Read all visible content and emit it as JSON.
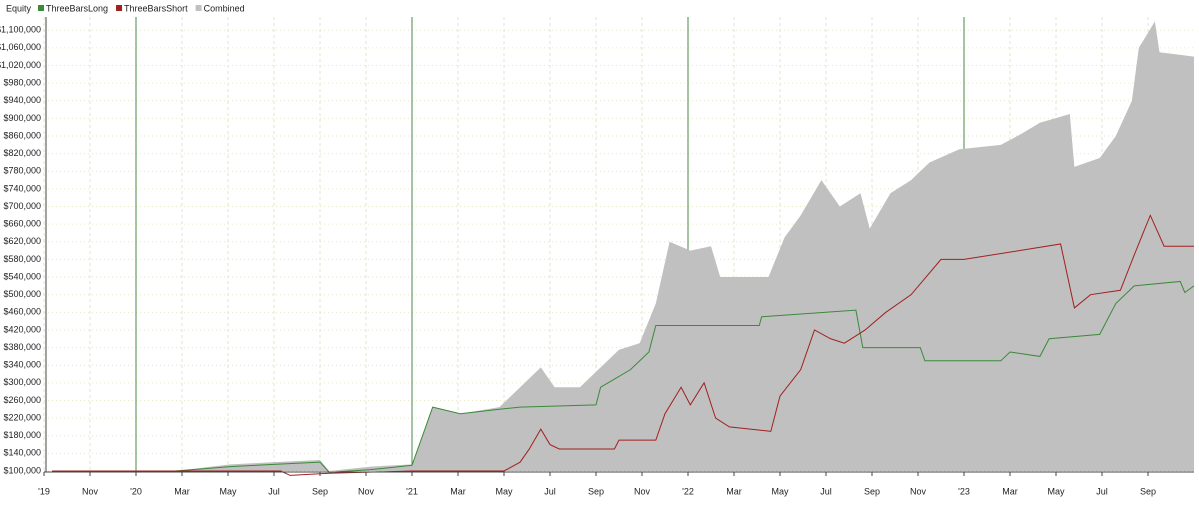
{
  "chart_data": {
    "type": "equity",
    "title": "Equity",
    "xlim": [
      0,
      50
    ],
    "ylim": [
      100000,
      1130000
    ],
    "grid": true,
    "xticks": [
      {
        "value": 0,
        "label": "'19"
      },
      {
        "value": 2,
        "label": "Nov"
      },
      {
        "value": 4,
        "label": "'20"
      },
      {
        "value": 6,
        "label": "Mar"
      },
      {
        "value": 8,
        "label": "May"
      },
      {
        "value": 10,
        "label": "Jul"
      },
      {
        "value": 12,
        "label": "Sep"
      },
      {
        "value": 14,
        "label": "Nov"
      },
      {
        "value": 16,
        "label": "'21"
      },
      {
        "value": 18,
        "label": "Mar"
      },
      {
        "value": 20,
        "label": "May"
      },
      {
        "value": 22,
        "label": "Jul"
      },
      {
        "value": 24,
        "label": "Sep"
      },
      {
        "value": 26,
        "label": "Nov"
      },
      {
        "value": 28,
        "label": "'22"
      },
      {
        "value": 30,
        "label": "Mar"
      },
      {
        "value": 32,
        "label": "May"
      },
      {
        "value": 34,
        "label": "Jul"
      },
      {
        "value": 36,
        "label": "Sep"
      },
      {
        "value": 38,
        "label": "Nov"
      },
      {
        "value": 40,
        "label": "'23"
      },
      {
        "value": 42,
        "label": "Mar"
      },
      {
        "value": 44,
        "label": "May"
      },
      {
        "value": 46,
        "label": "Jul"
      },
      {
        "value": 48,
        "label": "Sep"
      }
    ],
    "yticks": [
      {
        "value": 100000,
        "label": "$100,000"
      },
      {
        "value": 140000,
        "label": "$140,000"
      },
      {
        "value": 180000,
        "label": "$180,000"
      },
      {
        "value": 220000,
        "label": "$220,000"
      },
      {
        "value": 260000,
        "label": "$260,000"
      },
      {
        "value": 300000,
        "label": "$300,000"
      },
      {
        "value": 340000,
        "label": "$340,000"
      },
      {
        "value": 380000,
        "label": "$380,000"
      },
      {
        "value": 420000,
        "label": "$420,000"
      },
      {
        "value": 460000,
        "label": "$460,000"
      },
      {
        "value": 500000,
        "label": "$500,000"
      },
      {
        "value": 540000,
        "label": "$540,000"
      },
      {
        "value": 580000,
        "label": "$580,000"
      },
      {
        "value": 620000,
        "label": "$620,000"
      },
      {
        "value": 660000,
        "label": "$660,000"
      },
      {
        "value": 700000,
        "label": "$700,000"
      },
      {
        "value": 740000,
        "label": "$740,000"
      },
      {
        "value": 780000,
        "label": "$780,000"
      },
      {
        "value": 820000,
        "label": "$820,000"
      },
      {
        "value": 860000,
        "label": "$860,000"
      },
      {
        "value": 900000,
        "label": "$900,000"
      },
      {
        "value": 940000,
        "label": "$940,000"
      },
      {
        "value": 980000,
        "label": "$980,000"
      },
      {
        "value": 1020000,
        "label": "$1,020,000"
      },
      {
        "value": 1060000,
        "label": "$1,060,000"
      },
      {
        "value": 1100000,
        "label": "$1,100,000"
      }
    ],
    "series": [
      {
        "name": "ThreeBarsLong",
        "color": "#3a8a3a",
        "kind": "line",
        "x": [
          0.35,
          5.7,
          8.1,
          10,
          12,
          12.4,
          14.2,
          16,
          16.9,
          18.1,
          19.8,
          20.7,
          24,
          24.2,
          25.5,
          26.3,
          26.6,
          31.1,
          31.2,
          35.3,
          35.6,
          38.1,
          38.3,
          41.6,
          42,
          43.3,
          43.7,
          45.9,
          46.6,
          47.4,
          49.4,
          49.6,
          50
        ],
        "values": [
          100000,
          100000,
          110000,
          115000,
          120000,
          97000,
          103000,
          113000,
          245000,
          230000,
          240000,
          245000,
          250000,
          290000,
          330000,
          370000,
          430000,
          430000,
          450000,
          465000,
          380000,
          380000,
          350000,
          350000,
          370000,
          360000,
          400000,
          410000,
          480000,
          520000,
          530000,
          505000,
          520000
        ]
      },
      {
        "name": "ThreeBarsShort",
        "color": "#a02020",
        "kind": "line",
        "x": [
          0.35,
          10.3,
          10.7,
          12.4,
          16,
          20,
          20.7,
          21.1,
          21.6,
          22,
          22.4,
          24.8,
          25,
          26.6,
          27,
          27.7,
          28.1,
          28.7,
          29.2,
          29.8,
          31.6,
          32,
          32.9,
          33.5,
          34.2,
          34.8,
          35.7,
          36.6,
          37.7,
          39,
          40,
          44.2,
          44.8,
          45.5,
          46.8,
          47.4,
          48.1,
          48.7,
          50
        ],
        "values": [
          100000,
          100000,
          90000,
          95000,
          100000,
          100000,
          120000,
          150000,
          195000,
          160000,
          150000,
          150000,
          170000,
          170000,
          230000,
          290000,
          250000,
          300000,
          220000,
          200000,
          190000,
          270000,
          330000,
          420000,
          400000,
          390000,
          420000,
          460000,
          500000,
          580000,
          580000,
          615000,
          470000,
          500000,
          510000,
          590000,
          680000,
          610000,
          610000
        ]
      },
      {
        "name": "Combined",
        "color": "#c0c0c0",
        "kind": "area",
        "x": [
          0.35,
          5.7,
          8.1,
          10,
          12,
          12.4,
          14.2,
          16,
          16.9,
          18.1,
          19.8,
          20.7,
          21.6,
          22.2,
          23.3,
          24.1,
          25,
          25.9,
          26.6,
          27.2,
          28.1,
          29,
          29.4,
          31.5,
          32.2,
          32.9,
          33.8,
          34.6,
          35.5,
          35.9,
          36.8,
          37.7,
          38.5,
          39.8,
          41.6,
          42.5,
          43.3,
          44.6,
          44.8,
          45.9,
          46.6,
          47.3,
          47.6,
          48.3,
          48.5,
          50
        ],
        "values": [
          100000,
          100000,
          115000,
          120000,
          125000,
          100000,
          110000,
          115000,
          245000,
          230000,
          245000,
          290000,
          335000,
          290000,
          290000,
          330000,
          375000,
          390000,
          480000,
          620000,
          600000,
          610000,
          540000,
          540000,
          630000,
          680000,
          760000,
          700000,
          730000,
          650000,
          730000,
          760000,
          800000,
          830000,
          840000,
          865000,
          890000,
          910000,
          790000,
          810000,
          860000,
          940000,
          1060000,
          1120000,
          1050000,
          1040000
        ]
      }
    ]
  }
}
